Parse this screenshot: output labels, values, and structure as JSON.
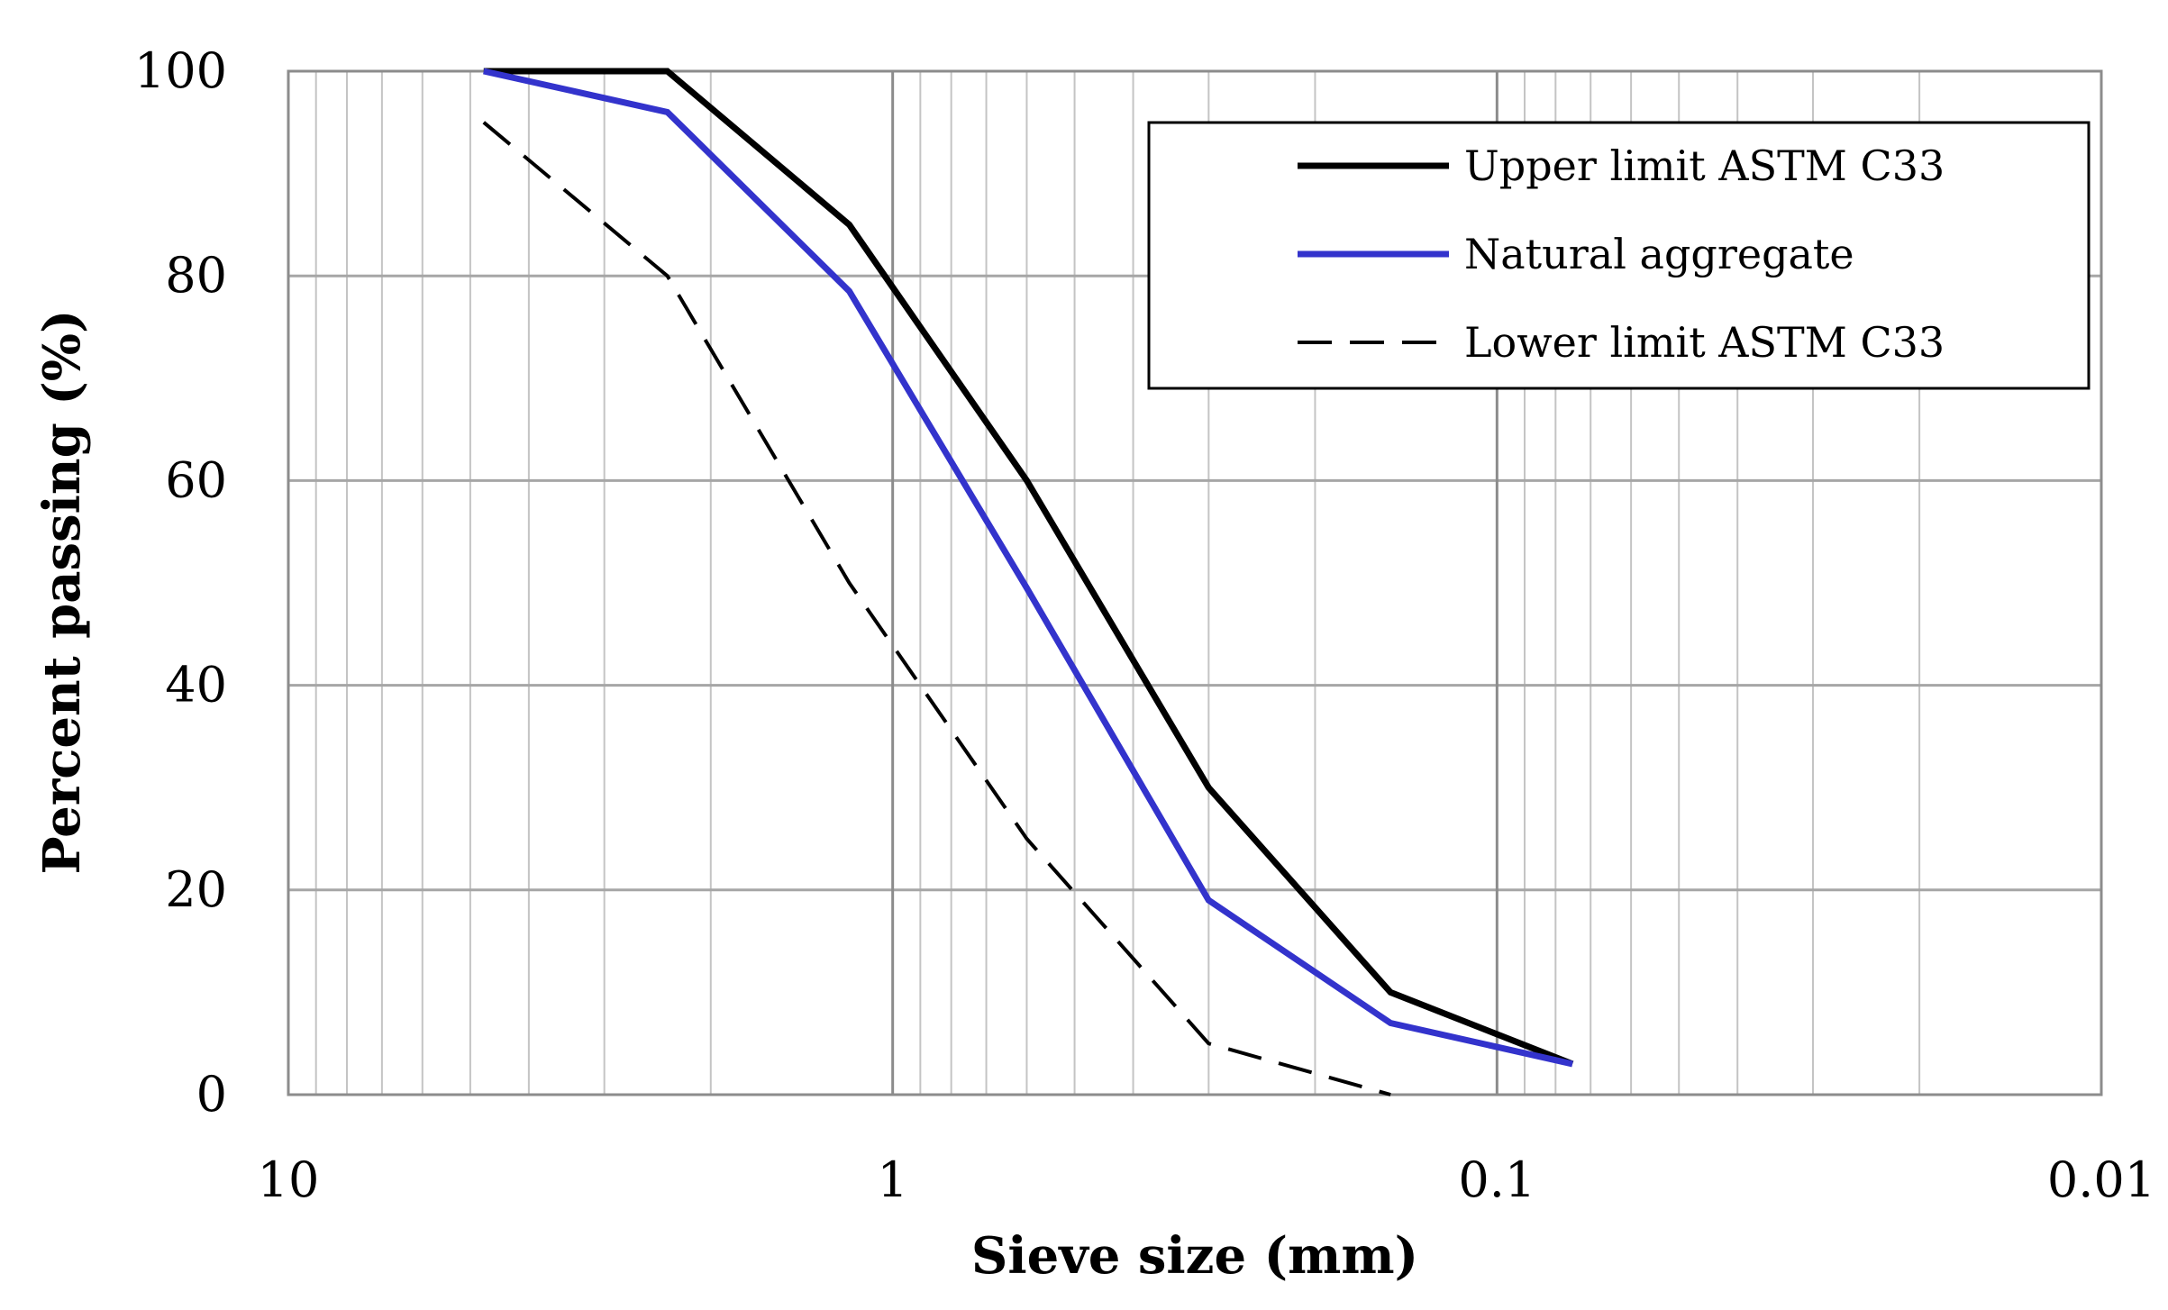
{
  "chart_data": {
    "type": "line",
    "x_scale": "log",
    "x_reversed": true,
    "xlim": [
      10,
      0.01
    ],
    "ylim": [
      0,
      100
    ],
    "xlabel": "Sieve size (mm)",
    "ylabel": "Percent passing (%)",
    "x_ticks": [
      10,
      1,
      0.1,
      0.01
    ],
    "x_tick_labels": [
      "10",
      "1",
      "0.1",
      "0.01"
    ],
    "y_ticks": [
      0,
      20,
      40,
      60,
      80,
      100
    ],
    "y_tick_labels": [
      "0",
      "20",
      "40",
      "60",
      "80",
      "100"
    ],
    "grid": true,
    "legend_position": "top-right",
    "series": [
      {
        "name": "Upper limit ASTM C33",
        "color": "#000000",
        "dash": "solid",
        "x": [
          4.75,
          2.36,
          1.18,
          0.6,
          0.3,
          0.15,
          0.075
        ],
        "y": [
          100,
          100,
          85,
          60,
          30,
          10,
          3
        ]
      },
      {
        "name": "Natural aggregate",
        "color": "#3333cc",
        "dash": "solid",
        "x": [
          4.75,
          2.36,
          1.18,
          0.6,
          0.3,
          0.15,
          0.075
        ],
        "y": [
          100,
          96,
          78.5,
          49.5,
          19,
          7,
          3
        ]
      },
      {
        "name": "Lower limit ASTM C33",
        "color": "#000000",
        "dash": "dashed",
        "x": [
          4.75,
          2.36,
          1.18,
          0.6,
          0.3,
          0.15
        ],
        "y": [
          95,
          80,
          50,
          25,
          5,
          0
        ]
      }
    ]
  }
}
